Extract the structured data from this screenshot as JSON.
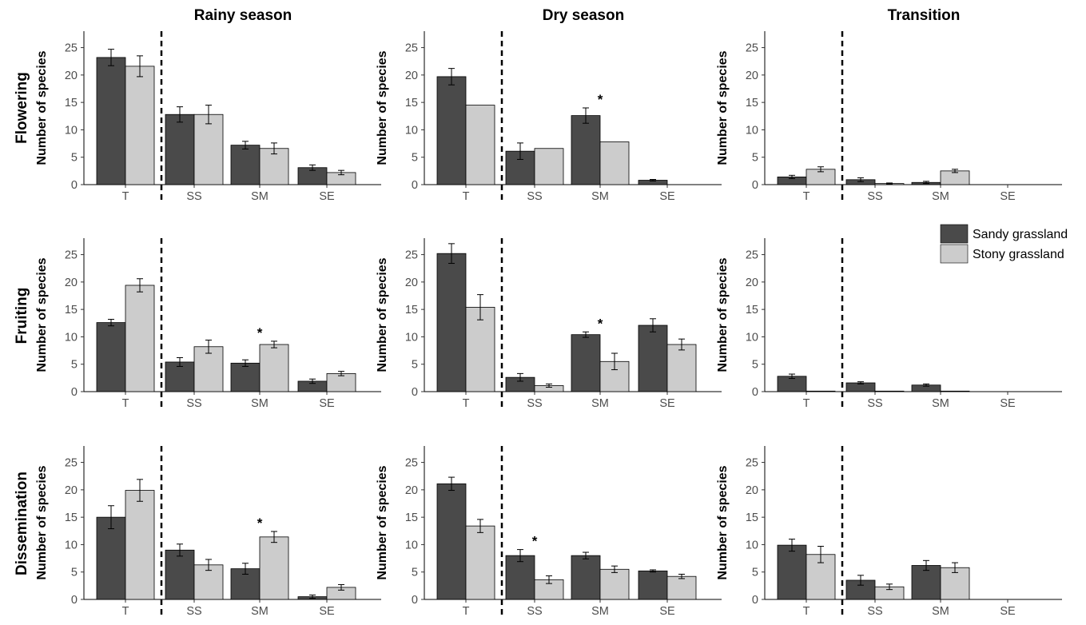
{
  "figure": {
    "column_titles": [
      "Rainy season",
      "Dry season",
      "Transition"
    ],
    "row_titles": [
      "Flowering",
      "Fruiting",
      "Dissemination"
    ],
    "ylabel": "Number of species"
  },
  "legend": {
    "position": "right",
    "items": [
      {
        "label": "Sandy grassland",
        "color": "#4a4a4a"
      },
      {
        "label": "Stony grassland",
        "color": "#cccccc"
      }
    ]
  },
  "chart_data": [
    {
      "type": "bar",
      "row": "Flowering",
      "column": "Rainy season",
      "ylim": [
        0,
        28
      ],
      "yticks": [
        0,
        5,
        10,
        15,
        20,
        25
      ],
      "categories": [
        "T",
        "SS",
        "SM",
        "SE"
      ],
      "series": [
        {
          "name": "Sandy grassland",
          "values": [
            23.2,
            12.8,
            7.2,
            3.1
          ],
          "errors": [
            1.5,
            1.4,
            0.7,
            0.5
          ]
        },
        {
          "name": "Stony grassland",
          "values": [
            21.6,
            12.8,
            6.6,
            2.2
          ],
          "errors": [
            1.9,
            1.7,
            1.0,
            0.4
          ]
        }
      ],
      "significant": []
    },
    {
      "type": "bar",
      "row": "Flowering",
      "column": "Dry season",
      "ylim": [
        0,
        28
      ],
      "yticks": [
        0,
        5,
        10,
        15,
        20,
        25
      ],
      "categories": [
        "T",
        "SS",
        "SM",
        "SE"
      ],
      "series": [
        {
          "name": "Sandy grassland",
          "values": [
            19.7,
            6.1,
            12.6,
            0.8
          ],
          "errors": [
            1.5,
            1.5,
            1.4,
            0.15
          ]
        },
        {
          "name": "Stony grassland",
          "values": [
            14.5,
            6.6,
            7.8,
            0
          ]
        }
      ],
      "significant": [
        "SM"
      ]
    },
    {
      "type": "bar",
      "row": "Flowering",
      "column": "Transition",
      "ylim": [
        0,
        28
      ],
      "yticks": [
        0,
        5,
        10,
        15,
        20,
        25
      ],
      "categories": [
        "T",
        "SS",
        "SM",
        "SE"
      ],
      "series": [
        {
          "name": "Sandy grassland",
          "values": [
            1.4,
            0.9,
            0.4,
            0
          ],
          "errors": [
            0.3,
            0.35,
            0.2,
            0
          ]
        },
        {
          "name": "Stony grassland",
          "values": [
            2.8,
            0.2,
            2.5,
            0
          ],
          "errors": [
            0.45,
            0.1,
            0.3,
            0
          ]
        }
      ],
      "significant": []
    },
    {
      "type": "bar",
      "row": "Fruiting",
      "column": "Rainy season",
      "ylim": [
        0,
        28
      ],
      "yticks": [
        0,
        5,
        10,
        15,
        20,
        25
      ],
      "categories": [
        "T",
        "SS",
        "SM",
        "SE"
      ],
      "series": [
        {
          "name": "Sandy grassland",
          "values": [
            12.6,
            5.4,
            5.2,
            1.9
          ],
          "errors": [
            0.6,
            0.8,
            0.6,
            0.4
          ]
        },
        {
          "name": "Stony grassland",
          "values": [
            19.4,
            8.2,
            8.6,
            3.3
          ],
          "errors": [
            1.2,
            1.2,
            0.6,
            0.4
          ]
        }
      ],
      "significant": [
        "SM"
      ]
    },
    {
      "type": "bar",
      "row": "Fruiting",
      "column": "Dry season",
      "ylim": [
        0,
        28
      ],
      "yticks": [
        0,
        5,
        10,
        15,
        20,
        25
      ],
      "categories": [
        "T",
        "SS",
        "SM",
        "SE"
      ],
      "series": [
        {
          "name": "Sandy grassland",
          "values": [
            25.2,
            2.6,
            10.4,
            12.1
          ],
          "errors": [
            1.8,
            0.7,
            0.5,
            1.2
          ]
        },
        {
          "name": "Stony grassland",
          "values": [
            15.4,
            1.1,
            5.5,
            8.6
          ],
          "errors": [
            2.3,
            0.3,
            1.5,
            1.0
          ]
        }
      ],
      "significant": [
        "SM"
      ]
    },
    {
      "type": "bar",
      "row": "Fruiting",
      "column": "Transition",
      "ylim": [
        0,
        28
      ],
      "yticks": [
        0,
        5,
        10,
        15,
        20,
        25
      ],
      "categories": [
        "T",
        "SS",
        "SM",
        "SE"
      ],
      "series": [
        {
          "name": "Sandy grassland",
          "values": [
            2.8,
            1.6,
            1.2,
            0
          ],
          "errors": [
            0.4,
            0.2,
            0.2,
            0
          ]
        },
        {
          "name": "Stony grassland",
          "values": [
            0.1,
            0.1,
            0.1,
            0
          ]
        }
      ],
      "significant": []
    },
    {
      "type": "bar",
      "row": "Dissemination",
      "column": "Rainy season",
      "ylim": [
        0,
        28
      ],
      "yticks": [
        0,
        5,
        10,
        15,
        20,
        25
      ],
      "categories": [
        "T",
        "SS",
        "SM",
        "SE"
      ],
      "series": [
        {
          "name": "Sandy grassland",
          "values": [
            15.0,
            9.0,
            5.6,
            0.5
          ],
          "errors": [
            2.1,
            1.1,
            1.0,
            0.3
          ]
        },
        {
          "name": "Stony grassland",
          "values": [
            19.9,
            6.3,
            11.4,
            2.2
          ],
          "errors": [
            2.0,
            1.0,
            1.0,
            0.5
          ]
        }
      ],
      "significant": [
        "SM"
      ]
    },
    {
      "type": "bar",
      "row": "Dissemination",
      "column": "Dry season",
      "ylim": [
        0,
        28
      ],
      "yticks": [
        0,
        5,
        10,
        15,
        20,
        25
      ],
      "categories": [
        "T",
        "SS",
        "SM",
        "SE"
      ],
      "series": [
        {
          "name": "Sandy grassland",
          "values": [
            21.1,
            8.0,
            8.0,
            5.2
          ],
          "errors": [
            1.2,
            1.1,
            0.6,
            0.2
          ]
        },
        {
          "name": "Stony grassland",
          "values": [
            13.4,
            3.6,
            5.5,
            4.2
          ],
          "errors": [
            1.2,
            0.7,
            0.6,
            0.4
          ]
        }
      ],
      "significant": [
        "SS"
      ]
    },
    {
      "type": "bar",
      "row": "Dissemination",
      "column": "Transition",
      "ylim": [
        0,
        28
      ],
      "yticks": [
        0,
        5,
        10,
        15,
        20,
        25
      ],
      "categories": [
        "T",
        "SS",
        "SM",
        "SE"
      ],
      "series": [
        {
          "name": "Sandy grassland",
          "values": [
            9.9,
            3.5,
            6.2,
            0
          ],
          "errors": [
            1.1,
            0.9,
            0.9,
            0
          ]
        },
        {
          "name": "Stony grassland",
          "values": [
            8.2,
            2.3,
            5.8,
            0
          ],
          "errors": [
            1.5,
            0.5,
            0.9,
            0
          ]
        }
      ],
      "significant": []
    }
  ]
}
